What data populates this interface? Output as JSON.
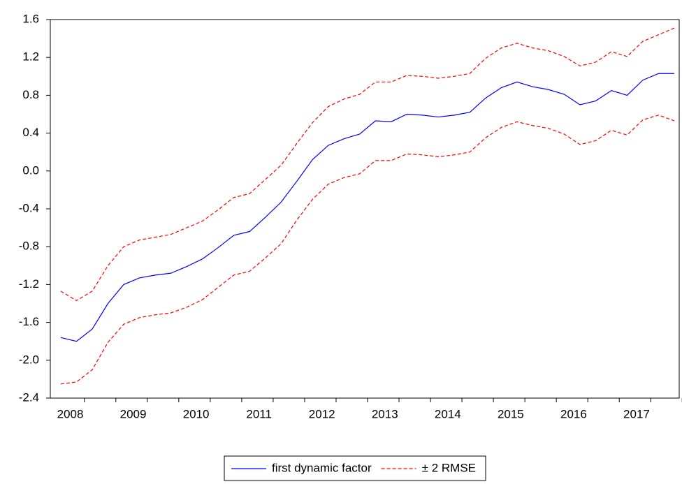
{
  "chart_data": {
    "type": "line",
    "categories": [
      "2008",
      null,
      null,
      null,
      "2009",
      null,
      null,
      null,
      "2010",
      null,
      null,
      null,
      "2011",
      null,
      null,
      null,
      "2012",
      null,
      null,
      null,
      "2013",
      null,
      null,
      null,
      "2014",
      null,
      null,
      null,
      "2015",
      null,
      null,
      null,
      "2016",
      null,
      null,
      null,
      "2017",
      null,
      null,
      null
    ],
    "series": [
      {
        "name": "first dynamic factor",
        "color": "#0000ff",
        "dash": false,
        "values": [
          -1.76,
          -1.8,
          -1.67,
          -1.4,
          -1.2,
          -1.13,
          -1.1,
          -1.08,
          -1.01,
          -0.93,
          -0.81,
          -0.68,
          -0.64,
          -0.49,
          -0.33,
          -0.11,
          0.12,
          0.27,
          0.34,
          0.39,
          0.53,
          0.52,
          0.6,
          0.59,
          0.57,
          0.59,
          0.62,
          0.77,
          0.88,
          0.94,
          0.89,
          0.86,
          0.81,
          0.7,
          0.74,
          0.85,
          0.8,
          0.96,
          1.03,
          1.03
        ]
      },
      {
        "name": "± 2 RMSE",
        "color": "#ff0000",
        "dash": true,
        "values": [
          -1.27,
          -1.37,
          -1.27,
          -1.0,
          -0.8,
          -0.73,
          -0.7,
          -0.67,
          -0.6,
          -0.53,
          -0.41,
          -0.28,
          -0.24,
          -0.09,
          0.06,
          0.29,
          0.51,
          0.68,
          0.76,
          0.81,
          0.94,
          0.94,
          1.01,
          1.0,
          0.98,
          1.0,
          1.03,
          1.19,
          1.3,
          1.35,
          1.3,
          1.27,
          1.21,
          1.11,
          1.15,
          1.26,
          1.21,
          1.37,
          1.44,
          1.51
        ]
      },
      {
        "color": "#ff0000",
        "dash": true,
        "values": [
          -2.25,
          -2.23,
          -2.1,
          -1.81,
          -1.62,
          -1.55,
          -1.52,
          -1.5,
          -1.44,
          -1.36,
          -1.23,
          -1.1,
          -1.06,
          -0.92,
          -0.77,
          -0.52,
          -0.3,
          -0.14,
          -0.07,
          -0.03,
          0.11,
          0.11,
          0.18,
          0.17,
          0.15,
          0.17,
          0.2,
          0.35,
          0.46,
          0.52,
          0.48,
          0.45,
          0.39,
          0.28,
          0.32,
          0.43,
          0.38,
          0.54,
          0.59,
          0.53
        ]
      }
    ],
    "ylim": [
      -2.4,
      1.6
    ],
    "yticks": [
      1.6,
      1.2,
      0.8,
      0.4,
      {
        "value": 0,
        "label": "0.0"
      },
      -0.4,
      -0.8,
      -1.2,
      -1.6,
      {
        "value": -2,
        "label": "-2.0"
      },
      -2.4
    ],
    "legend": "bottom"
  }
}
